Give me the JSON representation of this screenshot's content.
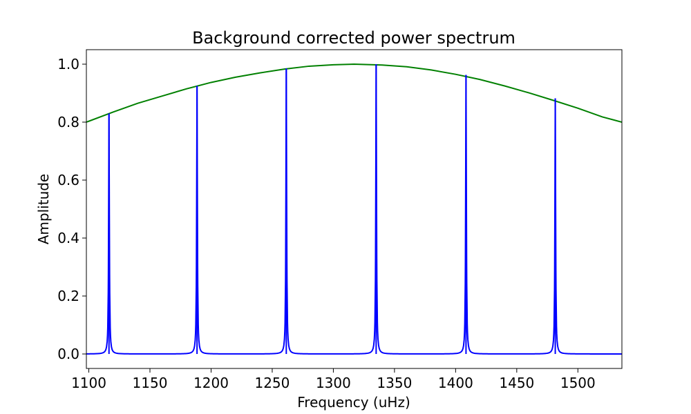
{
  "chart_data": {
    "type": "line",
    "title": "Background corrected power spectrum",
    "xlabel": "Frequency (uHz)",
    "ylabel": "Amplitude",
    "xlim": [
      1098,
      1536
    ],
    "ylim": [
      -0.05,
      1.05
    ],
    "x_ticks": [
      1100,
      1150,
      1200,
      1250,
      1300,
      1350,
      1400,
      1450,
      1500
    ],
    "x_tick_labels": [
      "1100",
      "1150",
      "1200",
      "1250",
      "1300",
      "1350",
      "1400",
      "1450",
      "1500"
    ],
    "y_ticks": [
      0.0,
      0.2,
      0.4,
      0.6,
      0.8,
      1.0
    ],
    "y_tick_labels": [
      "0.0",
      "0.2",
      "0.4",
      "0.6",
      "0.8",
      "1.0"
    ],
    "grid": false,
    "series": [
      {
        "color": "#0000ff",
        "kind": "lorentzian-peaks",
        "peaks": [
          {
            "x": 1116.5,
            "y": 0.83
          },
          {
            "x": 1188.5,
            "y": 0.925
          },
          {
            "x": 1261.5,
            "y": 0.985
          },
          {
            "x": 1335.0,
            "y": 1.0
          },
          {
            "x": 1408.5,
            "y": 0.963
          },
          {
            "x": 1481.5,
            "y": 0.882
          }
        ]
      },
      {
        "color": "#008000",
        "kind": "gaussian-envelope",
        "center": 1317,
        "amplitude": 1.0,
        "x": [
          1098,
          1120,
          1140,
          1160,
          1180,
          1200,
          1220,
          1240,
          1260,
          1280,
          1300,
          1317,
          1340,
          1360,
          1380,
          1400,
          1420,
          1440,
          1460,
          1480,
          1500,
          1520,
          1536
        ],
        "y": [
          0.8,
          0.835,
          0.865,
          0.89,
          0.915,
          0.937,
          0.955,
          0.97,
          0.983,
          0.993,
          0.998,
          1.0,
          0.997,
          0.991,
          0.98,
          0.965,
          0.947,
          0.925,
          0.901,
          0.875,
          0.848,
          0.818,
          0.8
        ]
      }
    ]
  }
}
